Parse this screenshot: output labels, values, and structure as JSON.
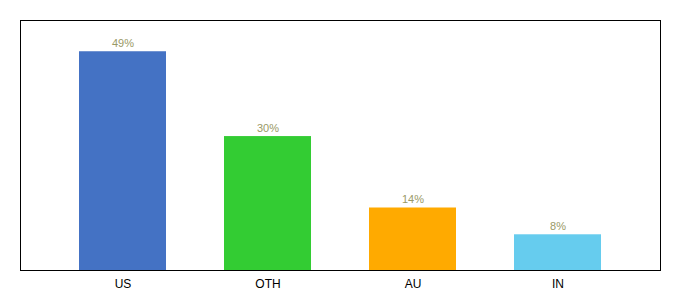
{
  "chart_data": {
    "type": "bar",
    "categories": [
      "US",
      "OTH",
      "AU",
      "IN"
    ],
    "values": [
      49,
      30,
      14,
      8
    ],
    "value_labels": [
      "49%",
      "30%",
      "14%",
      "8%"
    ],
    "data_labels": true,
    "colors": [
      "#4472c4",
      "#33cc33",
      "#ffaa00",
      "#66ccee"
    ],
    "ylim": [
      0,
      56
    ],
    "tick_labels": "x",
    "grid": false
  }
}
